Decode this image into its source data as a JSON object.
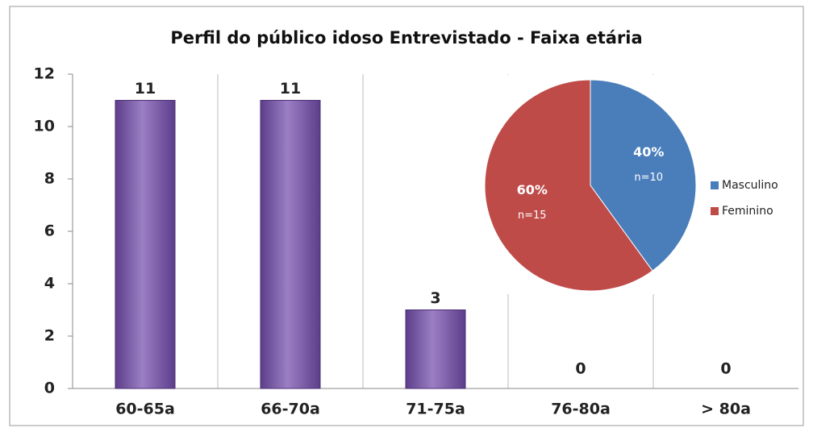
{
  "chart_data": [
    {
      "type": "bar",
      "title": "Perfil do público idoso Entrevistado  - Faixa etária",
      "categories": [
        "60-65a",
        "66-70a",
        "71-75a",
        "76-80a",
        "> 80a"
      ],
      "values": [
        11,
        11,
        3,
        0,
        0
      ],
      "color": "#8064a2",
      "ylim": [
        0,
        12
      ],
      "yticks": [
        0,
        2,
        4,
        6,
        8,
        10,
        12
      ],
      "grid": false
    },
    {
      "type": "pie",
      "categories": [
        "Masculino",
        "Feminino"
      ],
      "values": [
        40,
        60
      ],
      "value_labels": [
        "40%",
        "60%"
      ],
      "annotations": [
        "n=10",
        "n=15"
      ],
      "colors": [
        "#4a7ebb",
        "#be4b48"
      ],
      "legend": "right"
    }
  ]
}
